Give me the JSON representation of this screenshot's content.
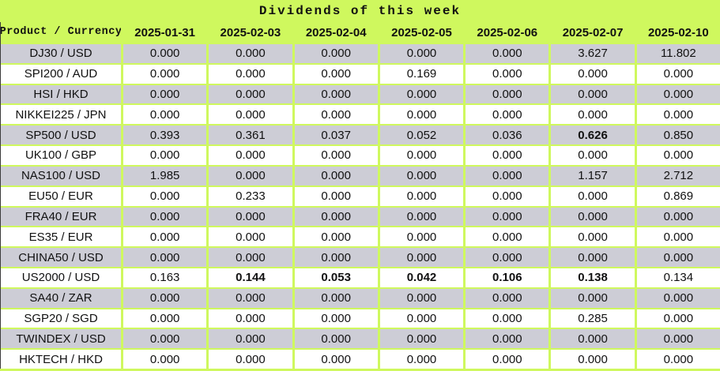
{
  "title": "Dividends of this week",
  "colors": {
    "header_bg": "#cff85e",
    "row_gray": "#cdcdd6",
    "row_white": "#ffffff",
    "text": "#111111",
    "edge": "#3c3c3c"
  },
  "chart_data": {
    "type": "table",
    "title": "Dividends of this week",
    "product_header": "Product / Currency",
    "date_headers": [
      "2025-01-31",
      "2025-02-03",
      "2025-02-04",
      "2025-02-05",
      "2025-02-06",
      "2025-02-07",
      "2025-02-10"
    ],
    "rows": [
      {
        "product": "DJ30 / USD",
        "values": [
          "0.000",
          "0.000",
          "0.000",
          "0.000",
          "0.000",
          "3.627",
          "11.802"
        ]
      },
      {
        "product": "SPI200 / AUD",
        "values": [
          "0.000",
          "0.000",
          "0.000",
          "0.169",
          "0.000",
          "0.000",
          "0.000"
        ]
      },
      {
        "product": "HSI / HKD",
        "values": [
          "0.000",
          "0.000",
          "0.000",
          "0.000",
          "0.000",
          "0.000",
          "0.000"
        ]
      },
      {
        "product": "NIKKEI225 / JPN",
        "values": [
          "0.000",
          "0.000",
          "0.000",
          "0.000",
          "0.000",
          "0.000",
          "0.000"
        ]
      },
      {
        "product": "SP500 / USD",
        "values": [
          "0.393",
          "0.361",
          "0.037",
          "0.052",
          "0.036",
          "0.626",
          "0.850"
        ]
      },
      {
        "product": "UK100 / GBP",
        "values": [
          "0.000",
          "0.000",
          "0.000",
          "0.000",
          "0.000",
          "0.000",
          "0.000"
        ]
      },
      {
        "product": "NAS100 / USD",
        "values": [
          "1.985",
          "0.000",
          "0.000",
          "0.000",
          "0.000",
          "1.157",
          "2.712"
        ]
      },
      {
        "product": "EU50 / EUR",
        "values": [
          "0.000",
          "0.233",
          "0.000",
          "0.000",
          "0.000",
          "0.000",
          "0.869"
        ]
      },
      {
        "product": "FRA40 / EUR",
        "values": [
          "0.000",
          "0.000",
          "0.000",
          "0.000",
          "0.000",
          "0.000",
          "0.000"
        ]
      },
      {
        "product": "ES35 / EUR",
        "values": [
          "0.000",
          "0.000",
          "0.000",
          "0.000",
          "0.000",
          "0.000",
          "0.000"
        ]
      },
      {
        "product": "CHINA50 / USD",
        "values": [
          "0.000",
          "0.000",
          "0.000",
          "0.000",
          "0.000",
          "0.000",
          "0.000"
        ]
      },
      {
        "product": "US2000 / USD",
        "values": [
          "0.163",
          "0.144",
          "0.053",
          "0.042",
          "0.106",
          "0.138",
          "0.134"
        ]
      },
      {
        "product": "SA40 / ZAR",
        "values": [
          "0.000",
          "0.000",
          "0.000",
          "0.000",
          "0.000",
          "0.000",
          "0.000"
        ]
      },
      {
        "product": "SGP20 / SGD",
        "values": [
          "0.000",
          "0.000",
          "0.000",
          "0.000",
          "0.000",
          "0.285",
          "0.000"
        ]
      },
      {
        "product": "TWINDEX / USD",
        "values": [
          "0.000",
          "0.000",
          "0.000",
          "0.000",
          "0.000",
          "0.000",
          "0.000"
        ]
      },
      {
        "product": "HKTECH / HKD",
        "values": [
          "0.000",
          "0.000",
          "0.000",
          "0.000",
          "0.000",
          "0.000",
          "0.000"
        ]
      }
    ],
    "bold_cells": [
      [
        4,
        5
      ],
      [
        11,
        1
      ],
      [
        11,
        2
      ],
      [
        11,
        3
      ],
      [
        11,
        4
      ],
      [
        11,
        5
      ]
    ]
  }
}
